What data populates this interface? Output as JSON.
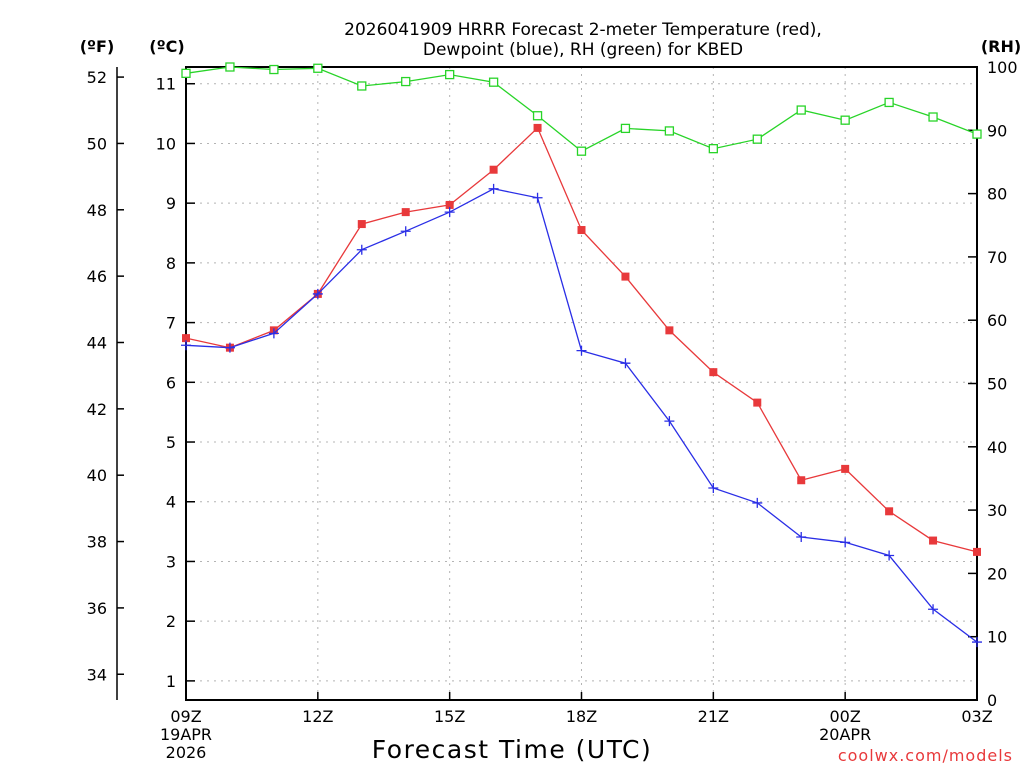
{
  "chart_data": {
    "type": "line",
    "title_line1": "2026041909 HRRR Forecast 2-meter Temperature (red),",
    "title_line2": "Dewpoint (blue), RH (green) for KBED",
    "xlabel": "Forecast Time (UTC)",
    "units": {
      "fahrenheit": "(ºF)",
      "celsius": "(ºC)",
      "rh": "(RH)"
    },
    "credit": "coolwx.com/models",
    "x_hours": [
      0,
      1,
      2,
      3,
      4,
      5,
      6,
      7,
      8,
      9,
      10,
      11,
      12,
      13,
      14,
      15,
      16,
      17,
      18
    ],
    "x_ticks": [
      {
        "hour": 0,
        "label": "09Z",
        "sub1": "19APR",
        "sub2": "2026"
      },
      {
        "hour": 3,
        "label": "12Z",
        "sub1": "",
        "sub2": ""
      },
      {
        "hour": 6,
        "label": "15Z",
        "sub1": "",
        "sub2": ""
      },
      {
        "hour": 9,
        "label": "18Z",
        "sub1": "",
        "sub2": ""
      },
      {
        "hour": 12,
        "label": "21Z",
        "sub1": "",
        "sub2": ""
      },
      {
        "hour": 15,
        "label": "00Z",
        "sub1": "20APR",
        "sub2": ""
      },
      {
        "hour": 18,
        "label": "03Z",
        "sub1": "",
        "sub2": ""
      }
    ],
    "celsius_axis": {
      "min": 0.68,
      "max": 11.28,
      "ticks": [
        "1",
        "2",
        "3",
        "4",
        "5",
        "6",
        "7",
        "8",
        "9",
        "10",
        "11"
      ]
    },
    "fahrenheit_ticks": [
      "34",
      "36",
      "38",
      "40",
      "42",
      "44",
      "46",
      "48",
      "50",
      "52"
    ],
    "rh_axis": {
      "min": 0,
      "max": 100,
      "ticks": [
        "0",
        "10",
        "20",
        "30",
        "40",
        "50",
        "60",
        "70",
        "80",
        "90",
        "100"
      ]
    },
    "series": [
      {
        "name": "Temperature",
        "axis": "celsius",
        "color": "#e8393b",
        "marker": "filled-square",
        "values": [
          6.74,
          6.58,
          6.87,
          7.48,
          8.65,
          8.85,
          8.97,
          9.56,
          10.26,
          8.55,
          7.77,
          6.87,
          6.17,
          5.66,
          4.36,
          4.55,
          3.84,
          3.35,
          3.16
        ]
      },
      {
        "name": "Dewpoint",
        "axis": "celsius",
        "color": "#2a2ee6",
        "marker": "plus",
        "values": [
          6.62,
          6.58,
          6.82,
          7.48,
          8.22,
          8.53,
          8.85,
          9.24,
          9.09,
          6.53,
          6.32,
          5.35,
          4.23,
          3.98,
          3.41,
          3.32,
          3.1,
          2.2,
          1.65
        ]
      },
      {
        "name": "RH",
        "axis": "rh",
        "color": "#28d428",
        "marker": "open-square",
        "values": [
          99,
          100,
          99.6,
          99.8,
          97,
          97.7,
          98.8,
          97.6,
          92.3,
          86.7,
          90.3,
          89.9,
          87.1,
          88.6,
          93.2,
          91.6,
          94.4,
          92.1,
          89.4
        ]
      }
    ]
  }
}
